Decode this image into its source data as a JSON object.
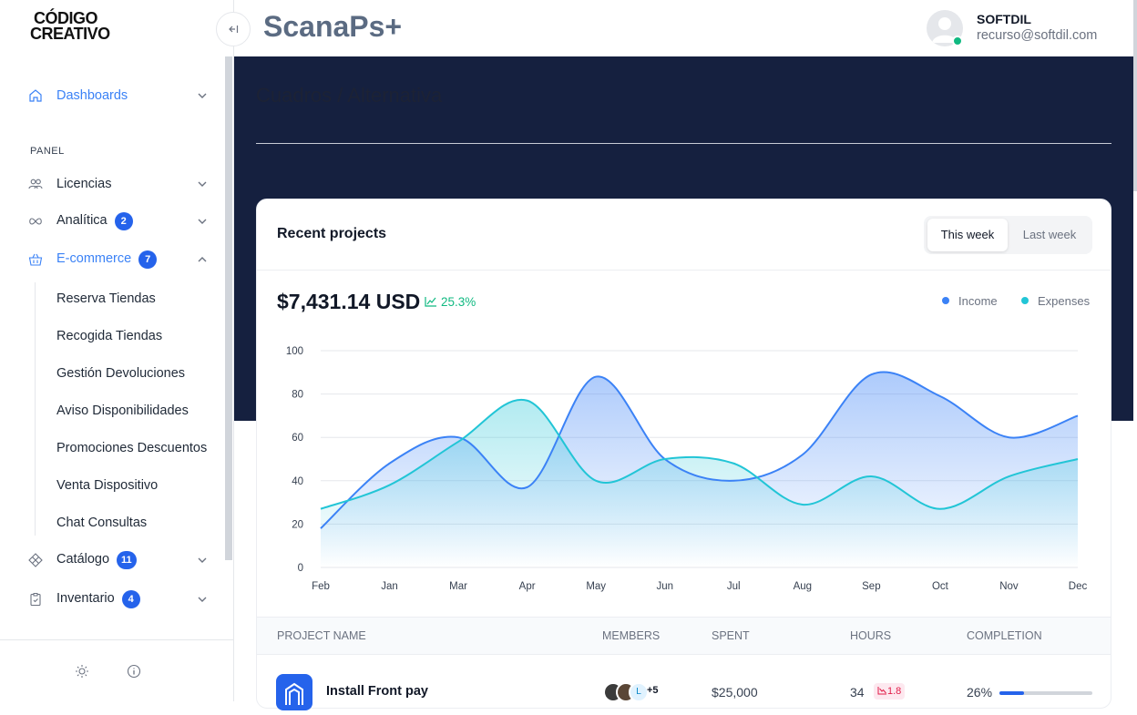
{
  "brand": {
    "line1": "CÓDIGO",
    "line2": "CREATIVO"
  },
  "app_title": "ScanaPs+",
  "user": {
    "name": "SOFTDIL",
    "email": "recurso@softdil.com"
  },
  "sidebar": {
    "dashboards": "Dashboards",
    "section_label": "PANEL",
    "items": [
      {
        "label": "Licencias",
        "badge": ""
      },
      {
        "label": "Analítica",
        "badge": "2"
      },
      {
        "label": "E-commerce",
        "badge": "7"
      },
      {
        "label": "Catálogo",
        "badge": "11"
      },
      {
        "label": "Inventario",
        "badge": "4"
      }
    ],
    "ecommerce_sub": [
      "Reserva Tiendas",
      "Recogida Tiendas",
      "Gestión Devoluciones",
      "Aviso Disponibilidades",
      "Promociones Descuentos",
      "Venta Dispositivo",
      "Chat Consultas"
    ]
  },
  "breadcrumb": "Cuadros / Alternativa",
  "card": {
    "title": "Recent projects",
    "segment": {
      "this_week": "This week",
      "last_week": "Last week"
    },
    "amount": "$7,431.14 USD",
    "delta": "25.3%"
  },
  "colors": {
    "income": "#3b82f6",
    "expenses": "#22c5d6",
    "accent": "#2563eb",
    "hero": "#15203f"
  },
  "chart_data": {
    "type": "area",
    "x": [
      "Feb",
      "Jan",
      "Mar",
      "Apr",
      "May",
      "Jun",
      "Jul",
      "Aug",
      "Sep",
      "Oct",
      "Nov",
      "Dec"
    ],
    "ylim": [
      0,
      100
    ],
    "yticks": [
      0,
      20,
      40,
      60,
      80,
      100
    ],
    "legend_position": "top-right",
    "grid": true,
    "series": [
      {
        "name": "Income",
        "values": [
          18,
          48,
          60,
          37,
          88,
          50,
          40,
          52,
          89,
          79,
          60,
          70
        ]
      },
      {
        "name": "Expenses",
        "values": [
          27,
          38,
          58,
          77,
          40,
          50,
          48,
          29,
          42,
          27,
          42,
          50
        ]
      }
    ]
  },
  "table": {
    "headers": [
      "PROJECT NAME",
      "MEMBERS",
      "SPENT",
      "HOURS",
      "COMPLETION"
    ],
    "rows": [
      {
        "name": "Install Front pay",
        "members_extra": "+5",
        "member_initial": "L",
        "spent": "$25,000",
        "hours": "34",
        "hours_delta": "1.8",
        "completion": "26%",
        "completion_value": 0.26
      }
    ]
  }
}
